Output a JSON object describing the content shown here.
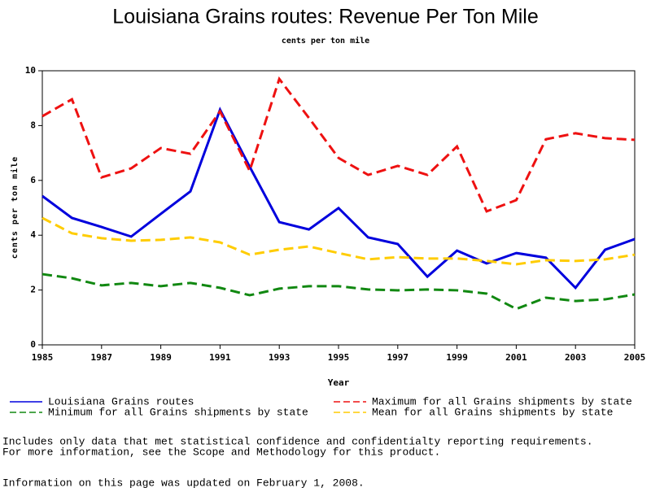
{
  "chart_data": {
    "type": "line",
    "title": "Louisiana Grains routes: Revenue Per Ton Mile",
    "subtitle": "cents per ton mile",
    "x_label": "Year",
    "y_label": "cents per ton mile",
    "x": [
      1985,
      1986,
      1987,
      1988,
      1989,
      1990,
      1991,
      1992,
      1993,
      1994,
      1995,
      1996,
      1997,
      1998,
      1999,
      2000,
      2001,
      2002,
      2003,
      2004,
      2005
    ],
    "xlim": [
      1985,
      2005
    ],
    "xticks": [
      1985,
      1987,
      1989,
      1991,
      1993,
      1995,
      1997,
      1999,
      2001,
      2003,
      2005
    ],
    "ylim": [
      0,
      10
    ],
    "yticks": [
      0,
      2,
      4,
      6,
      8,
      10
    ],
    "series": [
      {
        "name": "Louisiana Grains routes",
        "color": "#0000dd",
        "style": "solid",
        "values": [
          5.43,
          4.63,
          4.3,
          3.95,
          4.78,
          5.6,
          8.58,
          6.5,
          4.48,
          4.21,
          4.99,
          3.92,
          3.68,
          2.49,
          3.44,
          2.97,
          3.35,
          3.18,
          2.08,
          3.47,
          3.86
        ]
      },
      {
        "name": "Maximum for all Grains shipments by state",
        "color": "#ee1111",
        "style": "dashed",
        "values": [
          8.34,
          8.96,
          6.11,
          6.44,
          7.18,
          6.97,
          8.52,
          6.35,
          9.7,
          8.28,
          6.82,
          6.2,
          6.53,
          6.2,
          7.24,
          4.87,
          5.28,
          7.5,
          7.72,
          7.54,
          7.48
        ]
      },
      {
        "name": "Minimum for all Grains shipments by state",
        "color": "#118811",
        "style": "dashed",
        "values": [
          2.58,
          2.43,
          2.17,
          2.26,
          2.14,
          2.26,
          2.08,
          1.81,
          2.05,
          2.14,
          2.14,
          2.02,
          1.99,
          2.02,
          1.99,
          1.87,
          1.31,
          1.72,
          1.6,
          1.66,
          1.84
        ]
      },
      {
        "name": "Mean for all Grains shipments by state",
        "color": "#ffcc00",
        "style": "dashed",
        "values": [
          4.63,
          4.07,
          3.89,
          3.8,
          3.83,
          3.92,
          3.74,
          3.29,
          3.47,
          3.59,
          3.35,
          3.12,
          3.2,
          3.15,
          3.15,
          3.06,
          2.94,
          3.09,
          3.06,
          3.12,
          3.29
        ]
      }
    ],
    "notes": [
      "Includes only data that met statistical confidence and confidentialty reporting requirements.",
      "For more information, see the Scope and Methodology for this product.",
      "Information on this page was updated on February 1, 2008."
    ]
  }
}
